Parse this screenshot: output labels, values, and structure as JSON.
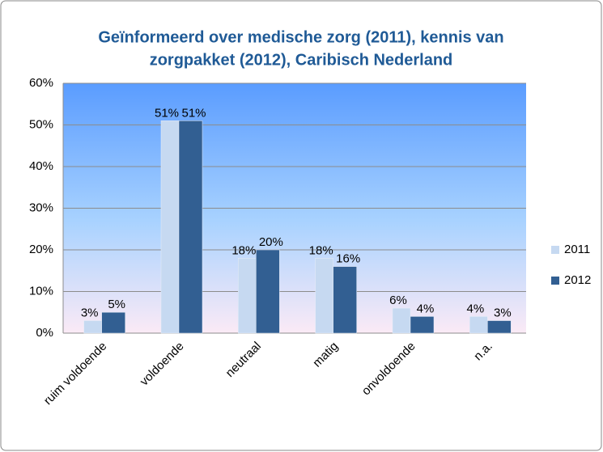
{
  "chart_data": {
    "type": "bar",
    "title_lines": [
      "Geïnformeerd over medische zorg (2011), kennis van",
      "zorgpakket (2012), Caribisch Nederland"
    ],
    "categories": [
      "ruim voldoende",
      "voldoende",
      "neutraal",
      "matig",
      "onvoldoende",
      "n.a."
    ],
    "series": [
      {
        "name": "2011",
        "color": "#c6d9f1",
        "values": [
          3,
          51,
          18,
          18,
          6,
          4
        ],
        "value_labels": [
          "3%",
          "51%",
          "18%",
          "18%",
          "6%",
          "4%"
        ]
      },
      {
        "name": "2012",
        "color": "#325f92",
        "values": [
          5,
          51,
          20,
          16,
          4,
          3
        ],
        "value_labels": [
          "5%",
          "51%",
          "20%",
          "16%",
          "4%",
          "3%"
        ]
      }
    ],
    "ylim": [
      0,
      60
    ],
    "yticks": [
      {
        "value": 0,
        "label": "0%"
      },
      {
        "value": 10,
        "label": "10%"
      },
      {
        "value": 20,
        "label": "20%"
      },
      {
        "value": 30,
        "label": "30%"
      },
      {
        "value": 40,
        "label": "40%"
      },
      {
        "value": 50,
        "label": "50%"
      },
      {
        "value": 60,
        "label": "60%"
      }
    ],
    "grid": true,
    "legend": "right"
  }
}
